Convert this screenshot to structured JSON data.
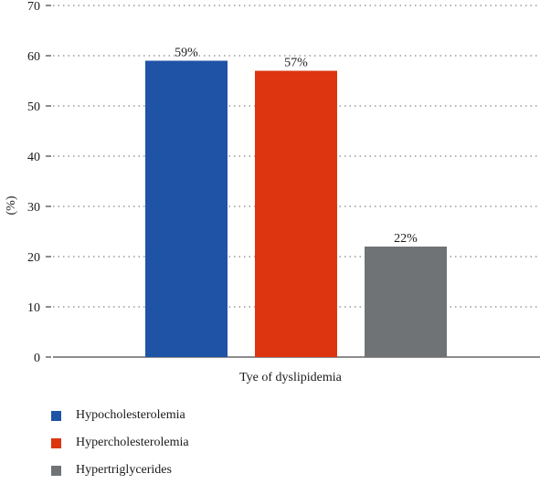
{
  "chart_data": {
    "type": "bar",
    "title": "",
    "xlabel": "Tye of dyslipidemia",
    "ylabel": "(%)",
    "ylim": [
      0,
      70
    ],
    "yticks": [
      0,
      10,
      20,
      30,
      40,
      50,
      60,
      70
    ],
    "grid": "dotted horizontal",
    "legend_position": "bottom-left",
    "series": [
      {
        "name": "Hypocholesterolemia",
        "value": 59,
        "data_label": "59%",
        "color": "#1f53a6"
      },
      {
        "name": "Hypercholesterolemia",
        "value": 57,
        "data_label": "57%",
        "color": "#dc3510"
      },
      {
        "name": "Hypertriglycerides",
        "value": 22,
        "data_label": "22%",
        "color": "#707375"
      }
    ]
  }
}
